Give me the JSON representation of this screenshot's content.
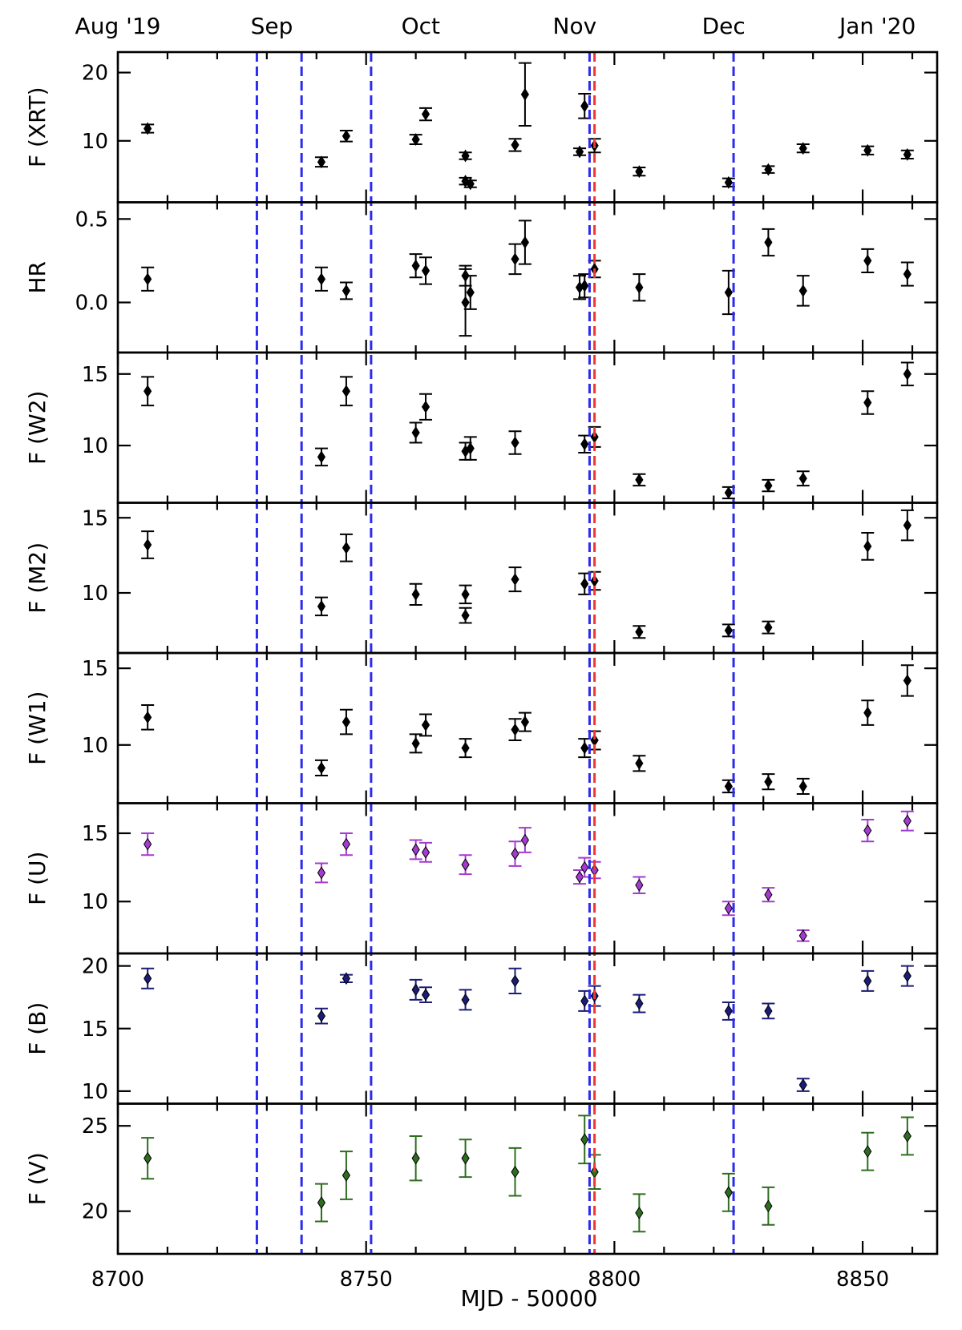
{
  "chart_data": {
    "type": "scatter",
    "xlabel": "MJD - 50000",
    "xlim": [
      8700,
      8865
    ],
    "x_ticks": [
      8700,
      8750,
      8800,
      8850
    ],
    "x_tick_labels": [
      "8700",
      "8750",
      "8800",
      "8850"
    ],
    "month_labels": [
      {
        "x": 8700,
        "label": "Aug '19"
      },
      {
        "x": 8731,
        "label": "Sep"
      },
      {
        "x": 8761,
        "label": "Oct"
      },
      {
        "x": 8792,
        "label": "Nov"
      },
      {
        "x": 8822,
        "label": "Dec"
      },
      {
        "x": 8853,
        "label": "Jan '20"
      }
    ],
    "vlines": [
      {
        "x": 8728,
        "color": "#2b2bef"
      },
      {
        "x": 8737,
        "color": "#2b2bef"
      },
      {
        "x": 8751,
        "color": "#2b2bef"
      },
      {
        "x": 8795,
        "color": "#2b2bef"
      },
      {
        "x": 8796,
        "color": "#ef3535"
      },
      {
        "x": 8824,
        "color": "#2b2bef"
      }
    ],
    "panels": [
      {
        "ylabel": "F (XRT)",
        "ylim": [
          1,
          23
        ],
        "yticks": [
          10,
          20
        ],
        "color": "#000000",
        "points": [
          {
            "x": 8706,
            "y": 11.8,
            "err": 0.6
          },
          {
            "x": 8741,
            "y": 6.9,
            "err": 0.7
          },
          {
            "x": 8746,
            "y": 10.7,
            "err": 0.8
          },
          {
            "x": 8760,
            "y": 10.2,
            "err": 0.7
          },
          {
            "x": 8762,
            "y": 13.9,
            "err": 0.9
          },
          {
            "x": 8770,
            "y": 7.8,
            "err": 0.5
          },
          {
            "x": 8770,
            "y": 4.1,
            "err": 0.5
          },
          {
            "x": 8771,
            "y": 3.7,
            "err": 0.5
          },
          {
            "x": 8780,
            "y": 9.4,
            "err": 0.9
          },
          {
            "x": 8782,
            "y": 16.8,
            "err": 4.6
          },
          {
            "x": 8793,
            "y": 8.4,
            "err": 0.5
          },
          {
            "x": 8794,
            "y": 15.1,
            "err": 1.8
          },
          {
            "x": 8796,
            "y": 9.3,
            "err": 1.0
          },
          {
            "x": 8805,
            "y": 5.5,
            "err": 0.6
          },
          {
            "x": 8823,
            "y": 3.9,
            "err": 0.6
          },
          {
            "x": 8831,
            "y": 5.8,
            "err": 0.5
          },
          {
            "x": 8838,
            "y": 8.9,
            "err": 0.6
          },
          {
            "x": 8851,
            "y": 8.6,
            "err": 0.6
          },
          {
            "x": 8859,
            "y": 8.0,
            "err": 0.6
          }
        ]
      },
      {
        "ylabel": "HR",
        "ylim": [
          -0.3,
          0.6
        ],
        "yticks": [
          0.0,
          0.5
        ],
        "ytick_labels": [
          "0.0",
          "0.5"
        ],
        "color": "#000000",
        "points": [
          {
            "x": 8706,
            "y": 0.14,
            "err": 0.07
          },
          {
            "x": 8741,
            "y": 0.14,
            "err": 0.07
          },
          {
            "x": 8746,
            "y": 0.07,
            "err": 0.05
          },
          {
            "x": 8760,
            "y": 0.22,
            "err": 0.07
          },
          {
            "x": 8762,
            "y": 0.19,
            "err": 0.08
          },
          {
            "x": 8770,
            "y": 0.16,
            "err": 0.06
          },
          {
            "x": 8770,
            "y": 0.0,
            "err": 0.2
          },
          {
            "x": 8771,
            "y": 0.06,
            "err": 0.1
          },
          {
            "x": 8780,
            "y": 0.26,
            "err": 0.09
          },
          {
            "x": 8782,
            "y": 0.36,
            "err": 0.13
          },
          {
            "x": 8793,
            "y": 0.09,
            "err": 0.07
          },
          {
            "x": 8794,
            "y": 0.1,
            "err": 0.07
          },
          {
            "x": 8796,
            "y": 0.2,
            "err": 0.05
          },
          {
            "x": 8805,
            "y": 0.09,
            "err": 0.08
          },
          {
            "x": 8823,
            "y": 0.06,
            "err": 0.13
          },
          {
            "x": 8831,
            "y": 0.36,
            "err": 0.08
          },
          {
            "x": 8838,
            "y": 0.07,
            "err": 0.09
          },
          {
            "x": 8851,
            "y": 0.25,
            "err": 0.07
          },
          {
            "x": 8859,
            "y": 0.17,
            "err": 0.07
          }
        ]
      },
      {
        "ylabel": "F (W2)",
        "ylim": [
          6,
          16.5
        ],
        "yticks": [
          10,
          15
        ],
        "color": "#000000",
        "points": [
          {
            "x": 8706,
            "y": 13.8,
            "err": 1.0
          },
          {
            "x": 8741,
            "y": 9.2,
            "err": 0.6
          },
          {
            "x": 8746,
            "y": 13.8,
            "err": 1.0
          },
          {
            "x": 8760,
            "y": 10.9,
            "err": 0.7
          },
          {
            "x": 8762,
            "y": 12.7,
            "err": 0.9
          },
          {
            "x": 8770,
            "y": 9.6,
            "err": 0.6
          },
          {
            "x": 8771,
            "y": 9.8,
            "err": 0.8
          },
          {
            "x": 8780,
            "y": 10.2,
            "err": 0.8
          },
          {
            "x": 8794,
            "y": 10.1,
            "err": 0.6
          },
          {
            "x": 8796,
            "y": 10.6,
            "err": 0.7
          },
          {
            "x": 8805,
            "y": 7.6,
            "err": 0.4
          },
          {
            "x": 8823,
            "y": 6.7,
            "err": 0.4
          },
          {
            "x": 8831,
            "y": 7.2,
            "err": 0.4
          },
          {
            "x": 8838,
            "y": 7.7,
            "err": 0.5
          },
          {
            "x": 8851,
            "y": 13.0,
            "err": 0.8
          },
          {
            "x": 8859,
            "y": 15.0,
            "err": 0.8
          }
        ]
      },
      {
        "ylabel": "F (M2)",
        "ylim": [
          6,
          16
        ],
        "yticks": [
          10,
          15
        ],
        "color": "#000000",
        "points": [
          {
            "x": 8706,
            "y": 13.2,
            "err": 0.9
          },
          {
            "x": 8741,
            "y": 9.1,
            "err": 0.6
          },
          {
            "x": 8746,
            "y": 13.0,
            "err": 0.9
          },
          {
            "x": 8760,
            "y": 9.9,
            "err": 0.7
          },
          {
            "x": 8770,
            "y": 9.9,
            "err": 0.6
          },
          {
            "x": 8770,
            "y": 8.5,
            "err": 0.5
          },
          {
            "x": 8780,
            "y": 10.9,
            "err": 0.8
          },
          {
            "x": 8794,
            "y": 10.6,
            "err": 0.7
          },
          {
            "x": 8796,
            "y": 10.8,
            "err": 0.6
          },
          {
            "x": 8805,
            "y": 7.4,
            "err": 0.4
          },
          {
            "x": 8823,
            "y": 7.5,
            "err": 0.4
          },
          {
            "x": 8831,
            "y": 7.7,
            "err": 0.4
          },
          {
            "x": 8851,
            "y": 13.1,
            "err": 0.9
          },
          {
            "x": 8859,
            "y": 14.5,
            "err": 1.0
          }
        ]
      },
      {
        "ylabel": "F (W1)",
        "ylim": [
          6.2,
          16
        ],
        "yticks": [
          10,
          15
        ],
        "color": "#000000",
        "points": [
          {
            "x": 8706,
            "y": 11.8,
            "err": 0.8
          },
          {
            "x": 8741,
            "y": 8.5,
            "err": 0.5
          },
          {
            "x": 8746,
            "y": 11.5,
            "err": 0.8
          },
          {
            "x": 8760,
            "y": 10.1,
            "err": 0.6
          },
          {
            "x": 8762,
            "y": 11.3,
            "err": 0.7
          },
          {
            "x": 8770,
            "y": 9.8,
            "err": 0.6
          },
          {
            "x": 8780,
            "y": 11.0,
            "err": 0.7
          },
          {
            "x": 8782,
            "y": 11.5,
            "err": 0.6
          },
          {
            "x": 8794,
            "y": 9.8,
            "err": 0.6
          },
          {
            "x": 8796,
            "y": 10.3,
            "err": 0.6
          },
          {
            "x": 8805,
            "y": 8.8,
            "err": 0.5
          },
          {
            "x": 8823,
            "y": 7.3,
            "err": 0.4
          },
          {
            "x": 8831,
            "y": 7.6,
            "err": 0.5
          },
          {
            "x": 8838,
            "y": 7.3,
            "err": 0.5
          },
          {
            "x": 8851,
            "y": 12.1,
            "err": 0.8
          },
          {
            "x": 8859,
            "y": 14.2,
            "err": 1.0
          }
        ]
      },
      {
        "ylabel": "F (U)",
        "ylim": [
          6.2,
          17.2
        ],
        "yticks": [
          10,
          15
        ],
        "color": "#a43ad0",
        "points": [
          {
            "x": 8706,
            "y": 14.2,
            "err": 0.8
          },
          {
            "x": 8741,
            "y": 12.1,
            "err": 0.7
          },
          {
            "x": 8746,
            "y": 14.2,
            "err": 0.8
          },
          {
            "x": 8760,
            "y": 13.8,
            "err": 0.7
          },
          {
            "x": 8762,
            "y": 13.6,
            "err": 0.7
          },
          {
            "x": 8770,
            "y": 12.7,
            "err": 0.7
          },
          {
            "x": 8780,
            "y": 13.5,
            "err": 0.9
          },
          {
            "x": 8782,
            "y": 14.5,
            "err": 0.9
          },
          {
            "x": 8793,
            "y": 11.8,
            "err": 0.5
          },
          {
            "x": 8794,
            "y": 12.5,
            "err": 0.7
          },
          {
            "x": 8796,
            "y": 12.3,
            "err": 0.6
          },
          {
            "x": 8805,
            "y": 11.2,
            "err": 0.6
          },
          {
            "x": 8823,
            "y": 9.5,
            "err": 0.5
          },
          {
            "x": 8831,
            "y": 10.5,
            "err": 0.5
          },
          {
            "x": 8838,
            "y": 7.5,
            "err": 0.4
          },
          {
            "x": 8851,
            "y": 15.2,
            "err": 0.8
          },
          {
            "x": 8859,
            "y": 15.9,
            "err": 0.7
          }
        ]
      },
      {
        "ylabel": "F (B)",
        "ylim": [
          9,
          21
        ],
        "yticks": [
          10,
          15,
          20
        ],
        "color": "#1b1b78",
        "points": [
          {
            "x": 8706,
            "y": 19.0,
            "err": 0.8
          },
          {
            "x": 8741,
            "y": 16.0,
            "err": 0.6
          },
          {
            "x": 8746,
            "y": 19.0,
            "err": 0.3
          },
          {
            "x": 8760,
            "y": 18.1,
            "err": 0.8
          },
          {
            "x": 8762,
            "y": 17.7,
            "err": 0.6
          },
          {
            "x": 8770,
            "y": 17.3,
            "err": 0.8
          },
          {
            "x": 8780,
            "y": 18.8,
            "err": 1.0
          },
          {
            "x": 8794,
            "y": 17.2,
            "err": 0.8
          },
          {
            "x": 8796,
            "y": 17.6,
            "err": 0.8
          },
          {
            "x": 8805,
            "y": 17.0,
            "err": 0.7
          },
          {
            "x": 8823,
            "y": 16.4,
            "err": 0.7
          },
          {
            "x": 8831,
            "y": 16.4,
            "err": 0.6
          },
          {
            "x": 8838,
            "y": 10.5,
            "err": 0.5
          },
          {
            "x": 8851,
            "y": 18.8,
            "err": 0.8
          },
          {
            "x": 8859,
            "y": 19.2,
            "err": 0.8
          }
        ]
      },
      {
        "ylabel": "F (V)",
        "ylim": [
          17.5,
          26.3
        ],
        "yticks": [
          20,
          25
        ],
        "color": "#2d6d1e",
        "points": [
          {
            "x": 8706,
            "y": 23.1,
            "err": 1.2
          },
          {
            "x": 8741,
            "y": 20.5,
            "err": 1.1
          },
          {
            "x": 8746,
            "y": 22.1,
            "err": 1.4
          },
          {
            "x": 8760,
            "y": 23.1,
            "err": 1.3
          },
          {
            "x": 8770,
            "y": 23.1,
            "err": 1.1
          },
          {
            "x": 8780,
            "y": 22.3,
            "err": 1.4
          },
          {
            "x": 8794,
            "y": 24.2,
            "err": 1.4
          },
          {
            "x": 8796,
            "y": 22.3,
            "err": 1.0
          },
          {
            "x": 8805,
            "y": 19.9,
            "err": 1.1
          },
          {
            "x": 8823,
            "y": 21.1,
            "err": 1.1
          },
          {
            "x": 8831,
            "y": 20.3,
            "err": 1.1
          },
          {
            "x": 8851,
            "y": 23.5,
            "err": 1.1
          },
          {
            "x": 8859,
            "y": 24.4,
            "err": 1.1
          }
        ]
      }
    ]
  }
}
